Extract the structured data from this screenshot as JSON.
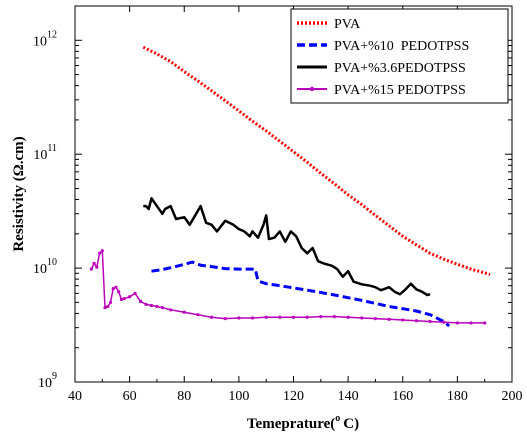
{
  "chart_data": {
    "type": "line",
    "xlabel_main": "Temeprature(",
    "xlabel_sup": "o",
    "xlabel_end": "C)",
    "ylabel": "Resistivity (Ω.cm)",
    "xlim": [
      40,
      200
    ],
    "ylim": [
      1000000000,
      2000000000000
    ],
    "y_scale": "log",
    "x_ticks": [
      "40",
      "60",
      "80",
      "100",
      "120",
      "140",
      "160",
      "180",
      "200"
    ],
    "y_ticks": [
      {
        "base": "10",
        "exp": "9",
        "value": 1000000000
      },
      {
        "base": "10",
        "exp": "10",
        "value": 10000000000
      },
      {
        "base": "10",
        "exp": "11",
        "value": 100000000000
      },
      {
        "base": "10",
        "exp": "12",
        "value": 1000000000000
      }
    ],
    "legend_position": "top-right",
    "series": [
      {
        "name": "PVA",
        "color": "#ff0000",
        "style": "dotted",
        "x": [
          65,
          70,
          75,
          80,
          85,
          90,
          95,
          100,
          105,
          110,
          115,
          120,
          125,
          130,
          135,
          140,
          145,
          150,
          155,
          160,
          165,
          170,
          175,
          180,
          185,
          192
        ],
        "y": [
          870000000000,
          760000000000,
          650000000000,
          530000000000,
          440000000000,
          360000000000,
          295000000000,
          240000000000,
          195000000000,
          160000000000,
          130000000000,
          105000000000,
          85000000000,
          68000000000,
          55000000000,
          44000000000,
          36000000000,
          29000000000,
          23500000000,
          19000000000,
          16000000000,
          13500000000,
          12000000000,
          10800000000,
          9800000000,
          8800000000
        ]
      },
      {
        "name": "PVA+%10  PEDOTPSS",
        "color": "#0000ff",
        "style": "dashed",
        "x": [
          68,
          72,
          76,
          80,
          83,
          86,
          90,
          95,
          100,
          105,
          106,
          107,
          110,
          115,
          120,
          125,
          130,
          135,
          140,
          145,
          150,
          155,
          160,
          165,
          170,
          175,
          177
        ],
        "y": [
          9400000000,
          9700000000,
          10200000000,
          10800000000,
          11300000000,
          10600000000,
          10300000000,
          9900000000,
          9800000000,
          9800000000,
          9800000000,
          7700000000,
          7300000000,
          7000000000,
          6700000000,
          6400000000,
          6100000000,
          5800000000,
          5500000000,
          5200000000,
          4900000000,
          4600000000,
          4400000000,
          4200000000,
          3900000000,
          3400000000,
          3100000000
        ]
      },
      {
        "name": "PVA+%3.6PEDOTPSS",
        "color": "#000000",
        "style": "solid",
        "x": [
          65,
          66,
          67,
          68,
          70,
          72,
          73,
          75,
          77,
          80,
          82,
          84,
          86,
          88,
          90,
          92,
          95,
          98,
          100,
          102,
          104,
          105,
          107,
          109,
          110,
          111,
          113,
          115,
          117,
          119,
          121,
          123,
          125,
          127,
          129,
          131,
          134,
          136,
          138,
          140,
          142,
          145,
          148,
          150,
          152,
          155,
          157,
          159,
          161,
          163,
          165,
          167,
          169,
          170
        ],
        "y": [
          35000000000,
          35000000000,
          33000000000,
          41000000000,
          35000000000,
          30000000000,
          33000000000,
          35000000000,
          27000000000,
          28000000000,
          24000000000,
          29000000000,
          35000000000,
          25000000000,
          24000000000,
          21000000000,
          26000000000,
          24000000000,
          22000000000,
          21000000000,
          19000000000,
          21000000000,
          18500000000,
          24000000000,
          29000000000,
          18000000000,
          18500000000,
          21000000000,
          17000000000,
          21000000000,
          19000000000,
          15000000000,
          13500000000,
          15000000000,
          11500000000,
          11000000000,
          10500000000,
          9800000000,
          8400000000,
          9400000000,
          7600000000,
          7200000000,
          7000000000,
          6800000000,
          6400000000,
          6800000000,
          6200000000,
          5900000000,
          6500000000,
          7300000000,
          6500000000,
          6200000000,
          5800000000,
          5900000000
        ]
      },
      {
        "name": "PVA+%15 PEDOTPSS",
        "color": "#bb00bb",
        "style": "solid-markers",
        "x": [
          46,
          47,
          48,
          49,
          50,
          51,
          52,
          53,
          54,
          55,
          56,
          57,
          58,
          60,
          62,
          64,
          66,
          68,
          70,
          72,
          75,
          80,
          85,
          90,
          95,
          100,
          105,
          110,
          115,
          120,
          125,
          130,
          135,
          140,
          145,
          150,
          155,
          160,
          165,
          170,
          175,
          180,
          185,
          190
        ],
        "y": [
          9800000000,
          11000000000,
          10200000000,
          13500000000,
          14200000000,
          4500000000,
          4600000000,
          5000000000,
          6600000000,
          6800000000,
          6200000000,
          5300000000,
          5400000000,
          5600000000,
          6000000000,
          5100000000,
          4800000000,
          4700000000,
          4600000000,
          4500000000,
          4300000000,
          4100000000,
          3900000000,
          3700000000,
          3600000000,
          3650000000,
          3650000000,
          3700000000,
          3700000000,
          3700000000,
          3700000000,
          3750000000,
          3750000000,
          3700000000,
          3650000000,
          3600000000,
          3550000000,
          3500000000,
          3450000000,
          3400000000,
          3350000000,
          3300000000,
          3300000000,
          3300000000
        ]
      }
    ]
  }
}
